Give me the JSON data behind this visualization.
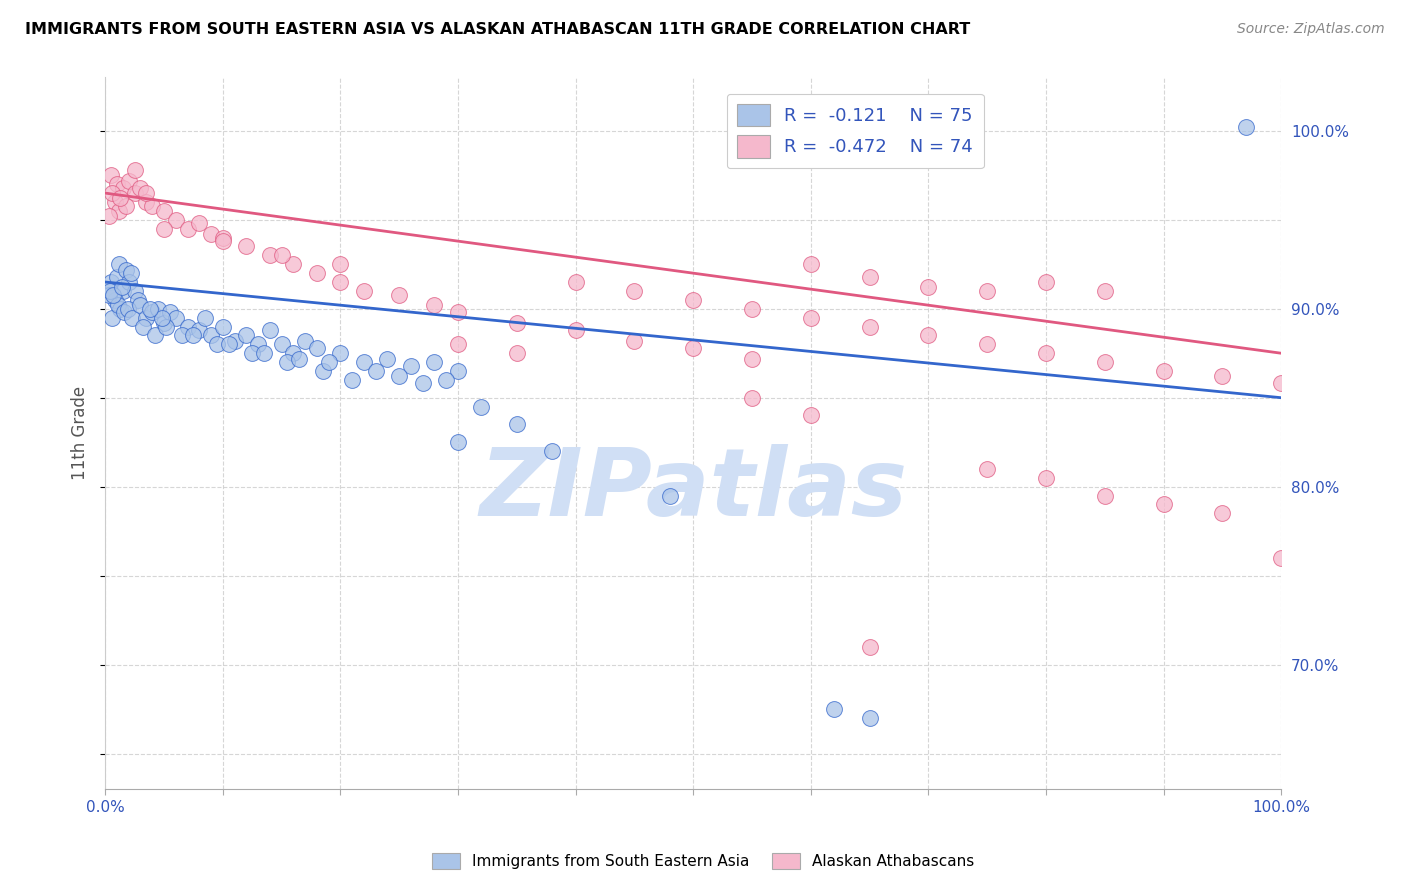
{
  "title": "IMMIGRANTS FROM SOUTH EASTERN ASIA VS ALASKAN ATHABASCAN 11TH GRADE CORRELATION CHART",
  "source": "Source: ZipAtlas.com",
  "ylabel": "11th Grade",
  "right_yticks": [
    70.0,
    80.0,
    90.0,
    100.0
  ],
  "blue_color": "#aac4e8",
  "pink_color": "#f5b8cc",
  "blue_line_color": "#3366cc",
  "pink_line_color": "#e05880",
  "legend_text_color": "#3355bb",
  "watermark": "ZIPatlas",
  "watermark_color": "#d0dff5",
  "blue_line_start": 91.5,
  "blue_line_end": 85.0,
  "pink_line_start": 96.5,
  "pink_line_end": 87.5,
  "blue_scatter": [
    [
      0.5,
      91.5
    ],
    [
      1.0,
      91.8
    ],
    [
      1.2,
      92.5
    ],
    [
      1.5,
      91.0
    ],
    [
      1.8,
      92.2
    ],
    [
      2.0,
      91.5
    ],
    [
      2.2,
      92.0
    ],
    [
      0.8,
      90.5
    ],
    [
      1.3,
      90.0
    ],
    [
      0.3,
      90.8
    ],
    [
      0.6,
      89.5
    ],
    [
      1.1,
      90.2
    ],
    [
      1.6,
      89.8
    ],
    [
      2.5,
      91.0
    ],
    [
      2.8,
      90.5
    ],
    [
      0.4,
      91.0
    ],
    [
      0.7,
      90.8
    ],
    [
      1.4,
      91.2
    ],
    [
      1.9,
      90.0
    ],
    [
      2.3,
      89.5
    ],
    [
      3.0,
      90.2
    ],
    [
      3.5,
      89.5
    ],
    [
      4.0,
      89.8
    ],
    [
      4.5,
      90.0
    ],
    [
      5.0,
      89.2
    ],
    [
      5.5,
      89.8
    ],
    [
      6.0,
      89.5
    ],
    [
      7.0,
      89.0
    ],
    [
      8.0,
      88.8
    ],
    [
      8.5,
      89.5
    ],
    [
      9.0,
      88.5
    ],
    [
      10.0,
      89.0
    ],
    [
      11.0,
      88.2
    ],
    [
      12.0,
      88.5
    ],
    [
      13.0,
      88.0
    ],
    [
      14.0,
      88.8
    ],
    [
      15.0,
      88.0
    ],
    [
      16.0,
      87.5
    ],
    [
      17.0,
      88.2
    ],
    [
      18.0,
      87.8
    ],
    [
      20.0,
      87.5
    ],
    [
      22.0,
      87.0
    ],
    [
      24.0,
      87.2
    ],
    [
      26.0,
      86.8
    ],
    [
      28.0,
      87.0
    ],
    [
      30.0,
      86.5
    ],
    [
      3.2,
      89.0
    ],
    [
      4.2,
      88.5
    ],
    [
      6.5,
      88.5
    ],
    [
      9.5,
      88.0
    ],
    [
      12.5,
      87.5
    ],
    [
      15.5,
      87.0
    ],
    [
      18.5,
      86.5
    ],
    [
      21.0,
      86.0
    ],
    [
      25.0,
      86.2
    ],
    [
      27.0,
      85.8
    ],
    [
      23.0,
      86.5
    ],
    [
      19.0,
      87.0
    ],
    [
      16.5,
      87.2
    ],
    [
      13.5,
      87.5
    ],
    [
      10.5,
      88.0
    ],
    [
      7.5,
      88.5
    ],
    [
      5.2,
      89.0
    ],
    [
      4.8,
      89.5
    ],
    [
      3.8,
      90.0
    ],
    [
      35.0,
      83.5
    ],
    [
      38.0,
      82.0
    ],
    [
      30.0,
      82.5
    ],
    [
      48.0,
      79.5
    ],
    [
      65.0,
      67.0
    ],
    [
      62.0,
      67.5
    ],
    [
      32.0,
      84.5
    ],
    [
      29.0,
      86.0
    ],
    [
      97.0,
      100.2
    ]
  ],
  "pink_scatter": [
    [
      0.5,
      97.5
    ],
    [
      1.0,
      97.0
    ],
    [
      1.5,
      96.8
    ],
    [
      2.0,
      97.2
    ],
    [
      2.5,
      96.5
    ],
    [
      3.0,
      96.8
    ],
    [
      0.8,
      96.0
    ],
    [
      1.2,
      95.5
    ],
    [
      1.8,
      95.8
    ],
    [
      0.3,
      95.2
    ],
    [
      0.6,
      96.5
    ],
    [
      1.3,
      96.2
    ],
    [
      3.5,
      96.0
    ],
    [
      4.0,
      95.8
    ],
    [
      5.0,
      95.5
    ],
    [
      6.0,
      95.0
    ],
    [
      7.0,
      94.5
    ],
    [
      8.0,
      94.8
    ],
    [
      9.0,
      94.2
    ],
    [
      10.0,
      94.0
    ],
    [
      12.0,
      93.5
    ],
    [
      14.0,
      93.0
    ],
    [
      16.0,
      92.5
    ],
    [
      18.0,
      92.0
    ],
    [
      20.0,
      91.5
    ],
    [
      22.0,
      91.0
    ],
    [
      25.0,
      90.8
    ],
    [
      28.0,
      90.2
    ],
    [
      30.0,
      89.8
    ],
    [
      35.0,
      89.2
    ],
    [
      40.0,
      88.8
    ],
    [
      45.0,
      88.2
    ],
    [
      50.0,
      87.8
    ],
    [
      55.0,
      87.2
    ],
    [
      60.0,
      92.5
    ],
    [
      65.0,
      91.8
    ],
    [
      70.0,
      91.2
    ],
    [
      75.0,
      91.0
    ],
    [
      80.0,
      91.5
    ],
    [
      85.0,
      91.0
    ],
    [
      60.0,
      89.5
    ],
    [
      65.0,
      89.0
    ],
    [
      70.0,
      88.5
    ],
    [
      75.0,
      88.0
    ],
    [
      80.0,
      87.5
    ],
    [
      85.0,
      87.0
    ],
    [
      90.0,
      86.5
    ],
    [
      95.0,
      86.2
    ],
    [
      100.0,
      85.8
    ],
    [
      55.0,
      90.0
    ],
    [
      50.0,
      90.5
    ],
    [
      45.0,
      91.0
    ],
    [
      40.0,
      91.5
    ],
    [
      30.0,
      88.0
    ],
    [
      35.0,
      87.5
    ],
    [
      85.0,
      79.5
    ],
    [
      90.0,
      79.0
    ],
    [
      95.0,
      78.5
    ],
    [
      80.0,
      80.5
    ],
    [
      75.0,
      81.0
    ],
    [
      65.0,
      71.0
    ],
    [
      100.0,
      76.0
    ],
    [
      60.0,
      84.0
    ],
    [
      55.0,
      85.0
    ],
    [
      20.0,
      92.5
    ],
    [
      15.0,
      93.0
    ],
    [
      10.0,
      93.8
    ],
    [
      5.0,
      94.5
    ],
    [
      2.5,
      97.8
    ],
    [
      3.5,
      96.5
    ]
  ],
  "xlim": [
    0,
    100
  ],
  "ylim": [
    63,
    103
  ]
}
